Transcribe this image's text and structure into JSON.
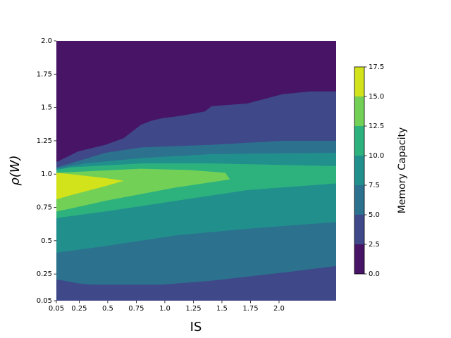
{
  "chart_data": {
    "type": "contour",
    "xlabel": "IS",
    "ylabel": "ρ(W)",
    "colorbar_label": "Memory Capacity",
    "xlim": [
      0.05,
      2.5
    ],
    "ylim": [
      0.05,
      2.0
    ],
    "xticks": [
      0.05,
      0.25,
      0.5,
      0.75,
      {
        "value": 1.0,
        "label": "1.0"
      },
      1.25,
      1.5,
      1.75,
      {
        "value": 2.0,
        "label": "2.0"
      }
    ],
    "yticks": [
      0.05,
      0.25,
      0.5,
      0.75,
      {
        "value": 1.0,
        "label": "1.0"
      },
      1.25,
      1.5,
      1.75,
      {
        "value": 2.0,
        "label": "2.0"
      }
    ],
    "levels": [
      {
        "value": 0,
        "label": "0.0"
      },
      2.5,
      {
        "value": 5,
        "label": "5.0"
      },
      7.5,
      {
        "value": 10,
        "label": "10.0"
      },
      12.5,
      {
        "value": 15,
        "label": "15.0"
      },
      17.5
    ],
    "colors": [
      "#471466",
      "#3f4889",
      "#2c718e",
      "#21908d",
      "#2db27d",
      "#73d056",
      "#d2e21b"
    ],
    "regions": [
      {
        "level": 2.5,
        "points": [
          [
            0.05,
            0.05
          ],
          [
            2.5,
            0.05
          ],
          [
            2.5,
            1.62
          ],
          [
            2.27,
            1.62
          ],
          [
            2.03,
            1.6
          ],
          [
            1.9,
            1.57
          ],
          [
            1.72,
            1.53
          ],
          [
            1.41,
            1.51
          ],
          [
            1.35,
            1.47
          ],
          [
            1.16,
            1.44
          ],
          [
            0.98,
            1.42
          ],
          [
            0.88,
            1.4
          ],
          [
            0.79,
            1.37
          ],
          [
            0.64,
            1.27
          ],
          [
            0.48,
            1.22
          ],
          [
            0.24,
            1.17
          ],
          [
            0.05,
            1.09
          ]
        ]
      },
      {
        "level": 5,
        "points": [
          [
            0.05,
            0.21
          ],
          [
            0.24,
            0.18
          ],
          [
            0.36,
            0.17
          ],
          [
            0.98,
            0.17
          ],
          [
            1.41,
            0.2
          ],
          [
            2.03,
            0.26
          ],
          [
            2.5,
            0.31
          ],
          [
            2.5,
            1.25
          ],
          [
            2.03,
            1.25
          ],
          [
            1.41,
            1.22
          ],
          [
            0.79,
            1.2
          ],
          [
            0.48,
            1.16
          ],
          [
            0.17,
            1.08
          ],
          [
            0.05,
            1.05
          ]
        ]
      },
      {
        "level": 7.5,
        "points": [
          [
            0.05,
            0.41
          ],
          [
            0.48,
            0.46
          ],
          [
            1.1,
            0.54
          ],
          [
            1.72,
            0.59
          ],
          [
            2.5,
            0.64
          ],
          [
            2.5,
            1.16
          ],
          [
            1.41,
            1.15
          ],
          [
            0.79,
            1.12
          ],
          [
            0.3,
            1.08
          ],
          [
            0.05,
            1.04
          ]
        ]
      },
      {
        "level": 10,
        "points": [
          [
            0.05,
            0.67
          ],
          [
            0.48,
            0.72
          ],
          [
            1.1,
            0.8
          ],
          [
            1.72,
            0.88
          ],
          [
            2.5,
            0.93
          ],
          [
            2.5,
            1.06
          ],
          [
            1.41,
            1.08
          ],
          [
            0.79,
            1.08
          ],
          [
            0.17,
            1.05
          ],
          [
            0.05,
            1.03
          ]
        ]
      },
      {
        "level": 12.5,
        "points": [
          [
            0.05,
            1.01
          ],
          [
            0.79,
            1.04
          ],
          [
            1.22,
            1.03
          ],
          [
            1.53,
            1.01
          ],
          [
            1.57,
            0.96
          ],
          [
            1.1,
            0.9
          ],
          [
            0.48,
            0.8
          ],
          [
            0.17,
            0.74
          ],
          [
            0.05,
            0.72
          ]
        ]
      },
      {
        "level": 15,
        "points": [
          [
            0.05,
            1.01
          ],
          [
            0.17,
            1.0
          ],
          [
            0.48,
            0.97
          ],
          [
            0.64,
            0.95
          ],
          [
            0.48,
            0.91
          ],
          [
            0.17,
            0.84
          ],
          [
            0.05,
            0.81
          ]
        ]
      }
    ]
  }
}
